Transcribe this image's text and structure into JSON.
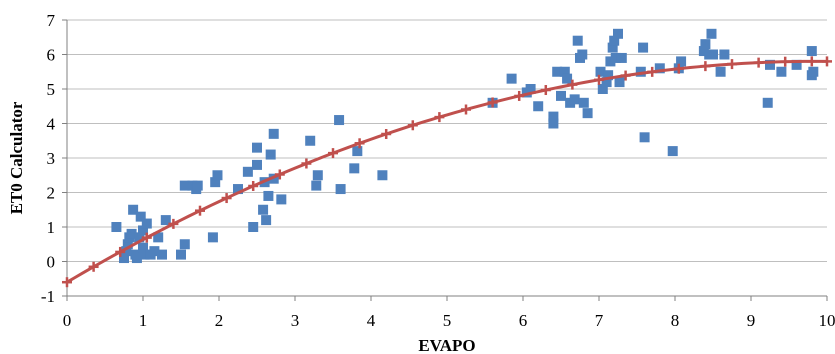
{
  "chart_data": {
    "type": "scatter",
    "title": "",
    "xlabel": "EVAPO",
    "ylabel": "ET0 Calculator",
    "xlim": [
      0,
      10
    ],
    "ylim": [
      -1,
      7
    ],
    "xticks": [
      "0",
      "1",
      "2",
      "3",
      "4",
      "5",
      "6",
      "7",
      "8",
      "9",
      "10"
    ],
    "yticks": [
      "-1",
      "0",
      "1",
      "2",
      "3",
      "4",
      "5",
      "6",
      "7"
    ],
    "grid": "horizontal",
    "legend": "none",
    "series": [
      {
        "marker": "square",
        "color": "#4F81BD",
        "points": [
          [
            0.65,
            1.0
          ],
          [
            0.75,
            0.1
          ],
          [
            0.78,
            0.3
          ],
          [
            0.8,
            0.5
          ],
          [
            0.82,
            0.7
          ],
          [
            0.85,
            0.8
          ],
          [
            0.87,
            1.5
          ],
          [
            0.9,
            0.2
          ],
          [
            0.92,
            0.1
          ],
          [
            0.95,
            0.7
          ],
          [
            0.97,
            1.3
          ],
          [
            1.0,
            0.4
          ],
          [
            1.0,
            0.9
          ],
          [
            1.02,
            0.2
          ],
          [
            1.05,
            1.1
          ],
          [
            1.1,
            0.2
          ],
          [
            1.15,
            0.3
          ],
          [
            1.2,
            0.7
          ],
          [
            1.25,
            0.2
          ],
          [
            1.3,
            1.2
          ],
          [
            1.5,
            0.2
          ],
          [
            1.55,
            0.5
          ],
          [
            1.55,
            2.2
          ],
          [
            1.65,
            2.2
          ],
          [
            1.7,
            2.1
          ],
          [
            1.72,
            2.2
          ],
          [
            1.92,
            0.7
          ],
          [
            1.95,
            2.3
          ],
          [
            1.98,
            2.5
          ],
          [
            2.25,
            2.1
          ],
          [
            2.38,
            2.6
          ],
          [
            2.45,
            1.0
          ],
          [
            2.5,
            2.8
          ],
          [
            2.5,
            3.3
          ],
          [
            2.58,
            1.5
          ],
          [
            2.6,
            2.3
          ],
          [
            2.62,
            1.2
          ],
          [
            2.65,
            1.9
          ],
          [
            2.68,
            3.1
          ],
          [
            2.72,
            2.4
          ],
          [
            2.72,
            3.7
          ],
          [
            2.82,
            1.8
          ],
          [
            3.2,
            3.5
          ],
          [
            3.28,
            2.2
          ],
          [
            3.3,
            2.5
          ],
          [
            3.58,
            4.1
          ],
          [
            3.6,
            2.1
          ],
          [
            3.78,
            2.7
          ],
          [
            3.82,
            3.2
          ],
          [
            4.15,
            2.5
          ],
          [
            5.6,
            4.6
          ],
          [
            5.85,
            5.3
          ],
          [
            6.05,
            4.9
          ],
          [
            6.1,
            5.0
          ],
          [
            6.2,
            4.5
          ],
          [
            6.4,
            4.2
          ],
          [
            6.4,
            4.0
          ],
          [
            6.45,
            5.5
          ],
          [
            6.5,
            4.8
          ],
          [
            6.55,
            5.5
          ],
          [
            6.58,
            5.3
          ],
          [
            6.62,
            4.6
          ],
          [
            6.68,
            4.7
          ],
          [
            6.72,
            6.4
          ],
          [
            6.75,
            5.9
          ],
          [
            6.78,
            6.0
          ],
          [
            6.8,
            4.6
          ],
          [
            6.85,
            4.3
          ],
          [
            7.02,
            5.5
          ],
          [
            7.05,
            5.0
          ],
          [
            7.1,
            5.2
          ],
          [
            7.12,
            5.4
          ],
          [
            7.15,
            5.8
          ],
          [
            7.18,
            6.2
          ],
          [
            7.2,
            6.4
          ],
          [
            7.22,
            5.9
          ],
          [
            7.25,
            6.6
          ],
          [
            7.27,
            5.2
          ],
          [
            7.3,
            5.9
          ],
          [
            7.55,
            5.5
          ],
          [
            7.58,
            6.2
          ],
          [
            7.6,
            3.6
          ],
          [
            7.8,
            5.6
          ],
          [
            7.97,
            3.2
          ],
          [
            8.05,
            5.6
          ],
          [
            8.08,
            5.8
          ],
          [
            8.38,
            6.1
          ],
          [
            8.4,
            6.3
          ],
          [
            8.45,
            6.0
          ],
          [
            8.48,
            6.6
          ],
          [
            8.5,
            6.0
          ],
          [
            8.6,
            5.5
          ],
          [
            8.65,
            6.0
          ],
          [
            9.22,
            4.6
          ],
          [
            9.25,
            5.7
          ],
          [
            9.4,
            5.5
          ],
          [
            9.6,
            5.7
          ],
          [
            9.8,
            6.1
          ],
          [
            9.8,
            5.4
          ],
          [
            9.82,
            5.5
          ]
        ]
      },
      {
        "marker": "plus",
        "line": true,
        "color": "#C0504D",
        "trend": {
          "model": "quadratic",
          "c0": -0.6,
          "c1": 1.3,
          "c2": -0.066
        },
        "x": [
          0,
          0.35,
          0.7,
          1.05,
          1.4,
          1.75,
          2.1,
          2.45,
          2.8,
          3.15,
          3.5,
          3.85,
          4.2,
          4.55,
          4.9,
          5.25,
          5.6,
          5.95,
          6.3,
          6.65,
          7.0,
          7.35,
          7.7,
          8.05,
          8.4,
          8.75,
          9.1,
          9.45,
          9.8,
          10.0
        ]
      }
    ]
  }
}
